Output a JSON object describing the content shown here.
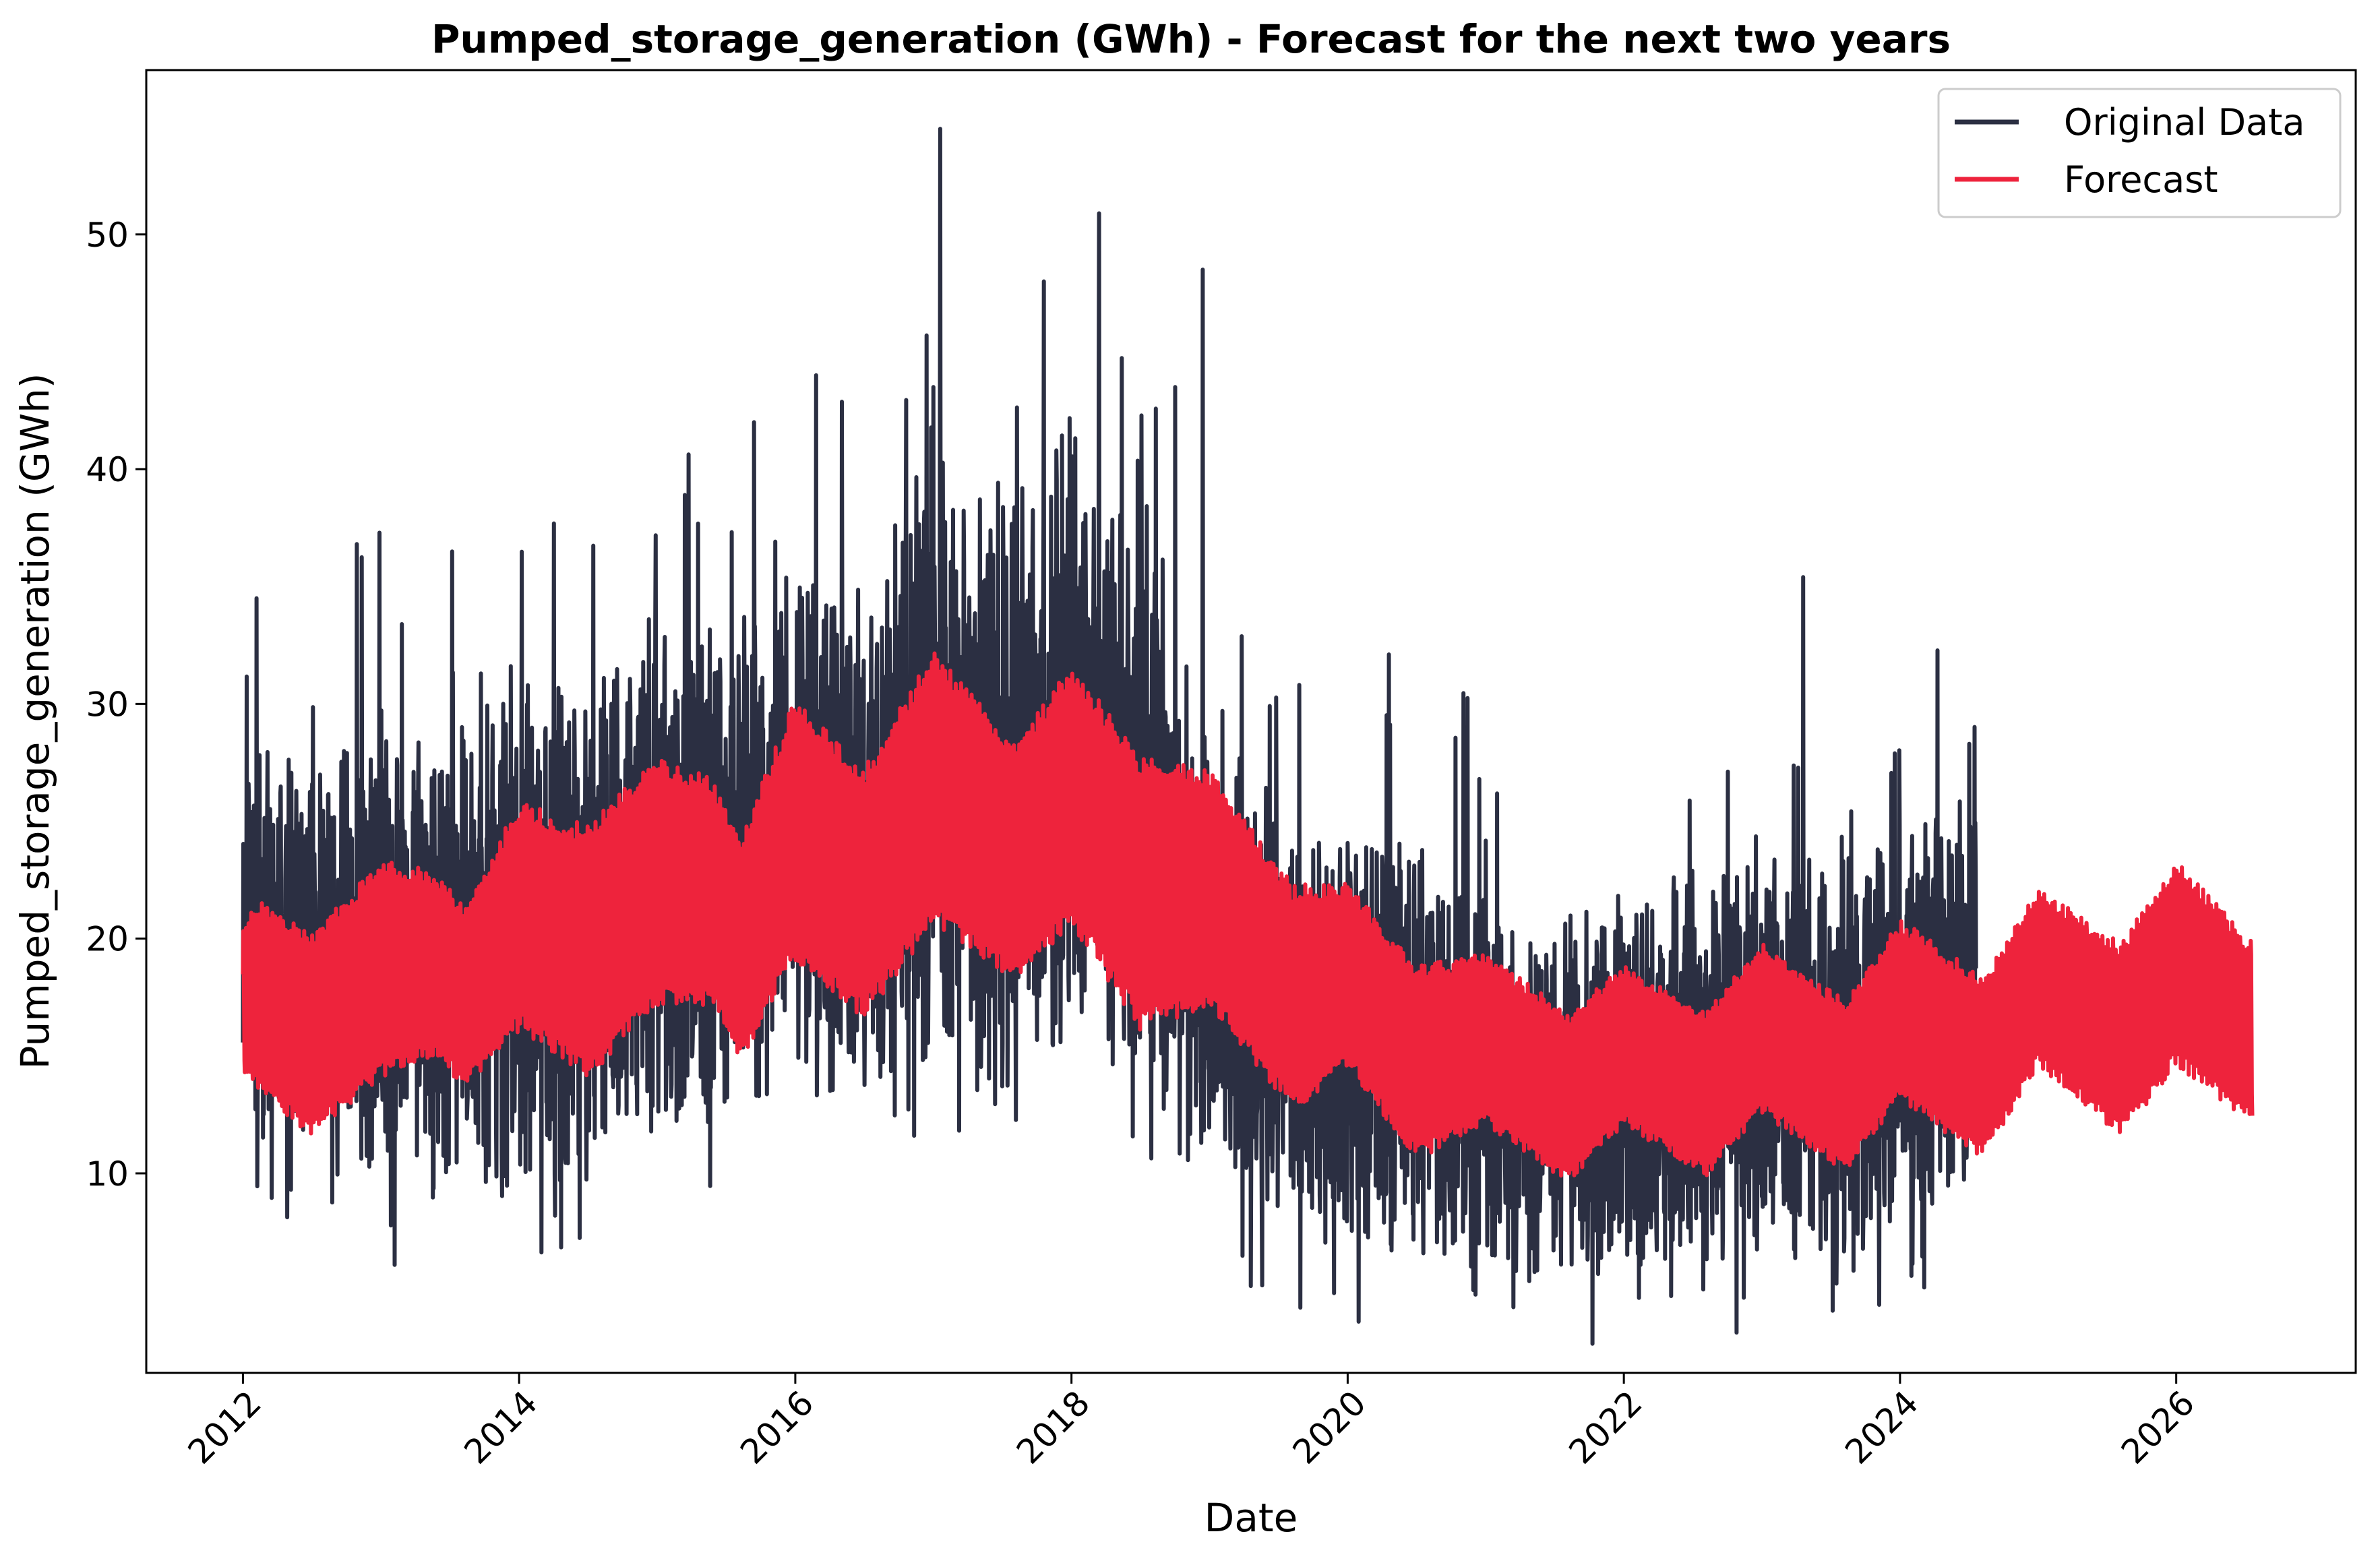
{
  "chart_data": {
    "type": "line",
    "title": "Pumped_storage_generation (GWh) - Forecast for the next two years",
    "xlabel": "Date",
    "ylabel": "Pumped_storage_generation (GWh)",
    "xlim": [
      2011.3,
      2027.3
    ],
    "ylim": [
      1.5,
      57
    ],
    "x_ticks": [
      2012,
      2014,
      2016,
      2018,
      2020,
      2022,
      2024,
      2026
    ],
    "x_tick_labels": [
      "2012",
      "2014",
      "2016",
      "2018",
      "2020",
      "2022",
      "2024",
      "2026"
    ],
    "y_ticks": [
      10,
      20,
      30,
      40,
      50
    ],
    "y_tick_labels": [
      "10",
      "20",
      "30",
      "40",
      "50"
    ],
    "legend_position": "top-right",
    "series": [
      {
        "name": "Original Data",
        "color": "#2b2f42",
        "x_range": [
          2012.0,
          2024.55
        ],
        "sampling": "daily",
        "approx_envelope": {
          "x": [
            2012.0,
            2012.5,
            2013.0,
            2013.5,
            2014.0,
            2014.5,
            2015.0,
            2015.5,
            2016.0,
            2016.5,
            2017.0,
            2017.5,
            2018.0,
            2018.5,
            2019.0,
            2019.5,
            2020.0,
            2020.5,
            2021.0,
            2021.5,
            2022.0,
            2022.5,
            2023.0,
            2023.5,
            2024.0,
            2024.55
          ],
          "low": [
            12.5,
            10.5,
            11.5,
            11.0,
            10.0,
            11.0,
            12.5,
            13.0,
            14.0,
            14.5,
            16.0,
            15.0,
            17.0,
            14.0,
            10.0,
            8.0,
            7.5,
            7.5,
            6.5,
            6.0,
            6.5,
            7.0,
            7.0,
            7.5,
            8.0,
            9.5
          ],
          "high": [
            27.0,
            27.0,
            29.0,
            28.0,
            30.0,
            30.0,
            32.0,
            32.0,
            36.0,
            34.0,
            40.0,
            36.0,
            42.0,
            36.0,
            28.0,
            25.0,
            24.0,
            23.0,
            21.0,
            20.0,
            21.0,
            22.0,
            23.5,
            22.0,
            24.0,
            25.0
          ]
        },
        "peaks": [
          {
            "x": 2012.1,
            "y": 34.5
          },
          {
            "x": 2013.15,
            "y": 33.4
          },
          {
            "x": 2015.2,
            "y": 38.9
          },
          {
            "x": 2015.7,
            "y": 42.0
          },
          {
            "x": 2016.15,
            "y": 44.0
          },
          {
            "x": 2016.95,
            "y": 45.7
          },
          {
            "x": 2017.05,
            "y": 54.5
          },
          {
            "x": 2017.8,
            "y": 48.0
          },
          {
            "x": 2018.2,
            "y": 50.9
          },
          {
            "x": 2018.75,
            "y": 43.5
          },
          {
            "x": 2018.95,
            "y": 48.5
          },
          {
            "x": 2023.3,
            "y": 35.4
          },
          {
            "x": 2024.5,
            "y": 28.3
          }
        ],
        "troughs": [
          {
            "x": 2013.1,
            "y": 6.1
          },
          {
            "x": 2019.3,
            "y": 5.2
          },
          {
            "x": 2019.9,
            "y": 4.9
          },
          {
            "x": 2021.2,
            "y": 4.3
          },
          {
            "x": 2023.85,
            "y": 4.4
          }
        ]
      },
      {
        "name": "Forecast",
        "color": "#ee233c",
        "x_range": [
          2012.0,
          2026.55
        ],
        "sampling": "daily",
        "approx_envelope": {
          "x": [
            2012.0,
            2012.1,
            2012.5,
            2013.0,
            2013.4,
            2013.6,
            2014.0,
            2014.5,
            2015.0,
            2015.4,
            2015.6,
            2016.0,
            2016.5,
            2017.0,
            2017.6,
            2018.0,
            2018.5,
            2019.0,
            2019.6,
            2020.0,
            2020.5,
            2021.0,
            2021.6,
            2022.0,
            2022.6,
            2023.0,
            2023.6,
            2024.0,
            2024.6,
            2025.0,
            2025.6,
            2026.0,
            2026.55
          ],
          "low": [
            14.0,
            13.5,
            11.5,
            14.0,
            15.0,
            13.5,
            16.0,
            14.0,
            17.0,
            17.0,
            14.5,
            19.0,
            16.5,
            20.5,
            18.0,
            20.5,
            16.0,
            17.0,
            12.5,
            14.5,
            10.5,
            12.0,
            9.5,
            12.0,
            9.8,
            12.5,
            10.0,
            13.0,
            10.5,
            14.5,
            11.5,
            14.5,
            12.0
          ],
          "high": [
            20.5,
            21.8,
            20.5,
            23.5,
            23.0,
            21.5,
            26.0,
            25.0,
            28.0,
            27.0,
            24.5,
            30.5,
            27.5,
            32.5,
            28.5,
            32.0,
            28.0,
            27.5,
            22.5,
            22.5,
            19.0,
            19.5,
            17.0,
            19.0,
            17.0,
            20.0,
            17.5,
            21.0,
            18.5,
            22.3,
            20.0,
            23.5,
            20.0
          ]
        }
      }
    ]
  }
}
